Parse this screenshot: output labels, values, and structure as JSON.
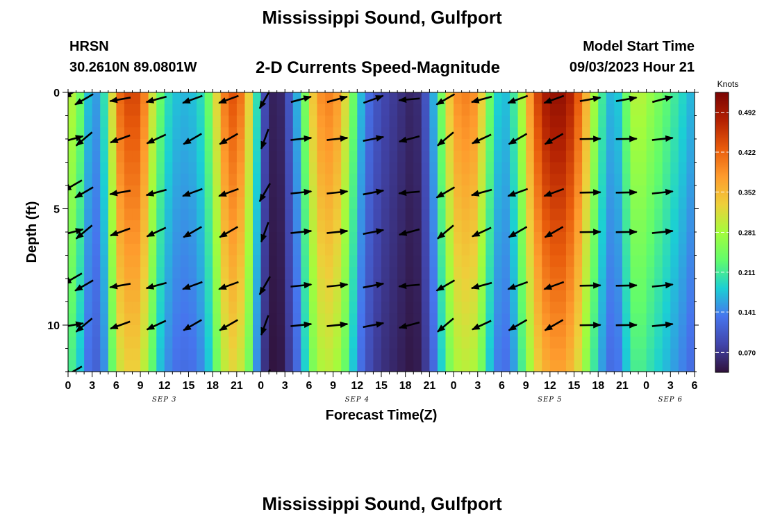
{
  "header": {
    "title": "Mississippi Sound, Gulfport",
    "station": "HRSN",
    "coordinates": "30.2610N  89.0801W",
    "subtitle": "2-D Currents Speed-Magnitude",
    "model_start_label": "Model Start Time",
    "model_start_value": "09/03/2023 Hour 21"
  },
  "footer": {
    "title": "Mississippi Sound, Gulfport"
  },
  "chart_data": {
    "type": "heatmap",
    "xlabel": "Forecast Time(Z)",
    "ylabel": "Depth (ft)",
    "xlim": [
      0,
      78
    ],
    "ylim": [
      0,
      12
    ],
    "y_inverted": true,
    "x_ticks": [
      0,
      3,
      6,
      9,
      12,
      15,
      18,
      21,
      24,
      27,
      30,
      33,
      36,
      39,
      42,
      45,
      48,
      51,
      54,
      57,
      60,
      63,
      66,
      69,
      72,
      75,
      78
    ],
    "x_tick_labels": [
      "0",
      "3",
      "6",
      "9",
      "12",
      "15",
      "18",
      "21",
      "0",
      "3",
      "6",
      "9",
      "12",
      "15",
      "18",
      "21",
      "0",
      "3",
      "6",
      "9",
      "12",
      "15",
      "18",
      "21",
      "0",
      "3",
      "6"
    ],
    "y_ticks": [
      0,
      5,
      10
    ],
    "y_tick_labels": [
      "0",
      "5",
      "10"
    ],
    "date_labels": [
      {
        "x": 12,
        "label": "SEP 3"
      },
      {
        "x": 36,
        "label": "SEP 4"
      },
      {
        "x": 60,
        "label": "SEP 5"
      },
      {
        "x": 75,
        "label": "SEP 6"
      }
    ],
    "colorbar": {
      "label": "Knots",
      "min": 0.035,
      "max": 0.527,
      "ticks": [
        0.07,
        0.141,
        0.211,
        0.281,
        0.352,
        0.422,
        0.492
      ],
      "tick_labels": [
        "0.070",
        "0.141",
        "0.211",
        "0.281",
        "0.352",
        "0.422",
        "0.492"
      ]
    },
    "speed_profile_by_hour": [
      [
        0,
        0.3
      ],
      [
        1,
        0.28
      ],
      [
        2,
        0.2
      ],
      [
        3,
        0.15
      ],
      [
        4,
        0.16
      ],
      [
        5,
        0.24
      ],
      [
        6,
        0.4
      ],
      [
        7,
        0.44
      ],
      [
        8,
        0.45
      ],
      [
        9,
        0.44
      ],
      [
        10,
        0.36
      ],
      [
        11,
        0.26
      ],
      [
        12,
        0.21
      ],
      [
        13,
        0.18
      ],
      [
        14,
        0.17
      ],
      [
        15,
        0.17
      ],
      [
        16,
        0.18
      ],
      [
        17,
        0.21
      ],
      [
        18,
        0.27
      ],
      [
        19,
        0.38
      ],
      [
        20,
        0.43
      ],
      [
        21,
        0.44
      ],
      [
        22,
        0.38
      ],
      [
        23,
        0.28
      ],
      [
        24,
        0.12
      ],
      [
        25,
        0.06
      ],
      [
        26,
        0.04
      ],
      [
        27,
        0.07
      ],
      [
        28,
        0.13
      ],
      [
        29,
        0.2
      ],
      [
        30,
        0.3
      ],
      [
        31,
        0.38
      ],
      [
        32,
        0.4
      ],
      [
        33,
        0.4
      ],
      [
        34,
        0.36
      ],
      [
        35,
        0.28
      ],
      [
        36,
        0.2
      ],
      [
        37,
        0.14
      ],
      [
        38,
        0.11
      ],
      [
        39,
        0.09
      ],
      [
        40,
        0.08
      ],
      [
        41,
        0.07
      ],
      [
        42,
        0.06
      ],
      [
        43,
        0.05
      ],
      [
        44,
        0.07
      ],
      [
        45,
        0.13
      ],
      [
        46,
        0.2
      ],
      [
        47,
        0.3
      ],
      [
        48,
        0.38
      ],
      [
        49,
        0.4
      ],
      [
        50,
        0.4
      ],
      [
        51,
        0.38
      ],
      [
        52,
        0.28
      ],
      [
        53,
        0.2
      ],
      [
        54,
        0.17
      ],
      [
        55,
        0.18
      ],
      [
        56,
        0.24
      ],
      [
        57,
        0.34
      ],
      [
        58,
        0.42
      ],
      [
        59,
        0.48
      ],
      [
        60,
        0.5
      ],
      [
        61,
        0.51
      ],
      [
        62,
        0.5
      ],
      [
        63,
        0.46
      ],
      [
        64,
        0.4
      ],
      [
        65,
        0.32
      ],
      [
        66,
        0.24
      ],
      [
        67,
        0.18
      ],
      [
        68,
        0.16
      ],
      [
        69,
        0.2
      ],
      [
        70,
        0.28
      ],
      [
        71,
        0.3
      ],
      [
        72,
        0.28
      ],
      [
        73,
        0.26
      ],
      [
        74,
        0.24
      ],
      [
        75,
        0.22
      ],
      [
        76,
        0.2
      ],
      [
        77,
        0.18
      ],
      [
        78,
        0.16
      ]
    ],
    "vector_times": [
      2,
      6.5,
      11,
      15.5,
      20,
      24.5,
      29,
      33.5,
      38,
      42.5,
      47,
      51.5,
      56,
      60.5,
      65,
      69.5,
      74
    ],
    "vector_depths": [
      0,
      2,
      4,
      6,
      8,
      10,
      12
    ],
    "vector_angles_deg_by_time": [
      -150,
      -170,
      -165,
      -160,
      -160,
      -120,
      15,
      15,
      20,
      -175,
      -150,
      -165,
      -160,
      -160,
      10,
      10,
      15
    ],
    "vector_depth_offset_deg": [
      0,
      30,
      30,
      30,
      30,
      30,
      20
    ],
    "vector_left_col_angles_deg": [
      -150,
      15,
      -150,
      15,
      -150,
      10,
      -150
    ]
  }
}
